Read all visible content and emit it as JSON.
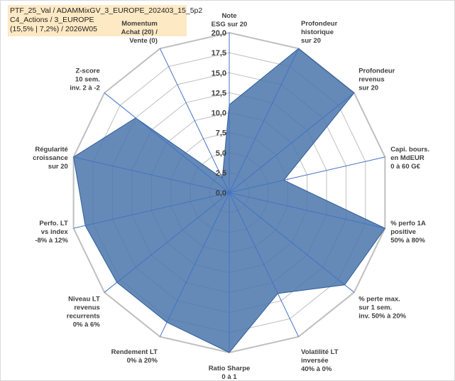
{
  "info": {
    "line1": "PTF_25_Val / ADAMMixGV_3_EUROPE_202403_15_5p2",
    "line2": "C4_Actions / 3_EUROPE",
    "line3": "(15,5% | 7,2%) / 2026W05"
  },
  "colors": {
    "fill": "#4a76aa",
    "stroke": "#2f5f99",
    "grid": "#bfbfbf",
    "axis": "#4472c4"
  },
  "chart_data": {
    "type": "radar",
    "rmax": 20,
    "ticks": [
      "0,0",
      "2,5",
      "5,0",
      "7,5",
      "10,0",
      "12,5",
      "15,0",
      "17,5",
      "20,0"
    ],
    "axes": [
      {
        "lines": [
          "Note",
          "ESG sur 20"
        ],
        "value": 11
      },
      {
        "lines": [
          "Profondeur",
          "historique",
          "sur 20"
        ],
        "value": 20
      },
      {
        "lines": [
          "Profondeur",
          "revenus",
          "sur 20"
        ],
        "value": 20
      },
      {
        "lines": [
          "Capi. bours.",
          "en MdEUR",
          "0 à 60 G€"
        ],
        "value": 7
      },
      {
        "lines": [
          "% perfo 1A",
          "positive",
          "50% à 80%"
        ],
        "value": 20
      },
      {
        "lines": [
          "% perte max.",
          "sur 1 sem.",
          "inv. 50% à 20%"
        ],
        "value": 18.5
      },
      {
        "lines": [
          "Volatilité LT",
          "inversée",
          "40% à 0%"
        ],
        "value": 14
      },
      {
        "lines": [
          "Ratio Sharpe",
          "0 à 1"
        ],
        "value": 20
      },
      {
        "lines": [
          "Rendement LT",
          "0% à 20%"
        ],
        "value": 18
      },
      {
        "lines": [
          "Niveau LT",
          "revenus",
          "recurrents",
          "0% à 6%"
        ],
        "value": 18
      },
      {
        "lines": [
          "Perfo. LT",
          "vs index",
          "-8% à 12%"
        ],
        "value": 18.5
      },
      {
        "lines": [
          "Régularité",
          "croissance",
          "sur 20"
        ],
        "value": 20
      },
      {
        "lines": [
          "Z-score",
          "10 sem.",
          "inv. 2 à -2"
        ],
        "value": 15
      },
      {
        "lines": [
          "Momentum",
          "Achat (20) /",
          "Vente (0)"
        ],
        "value": 2
      }
    ]
  }
}
